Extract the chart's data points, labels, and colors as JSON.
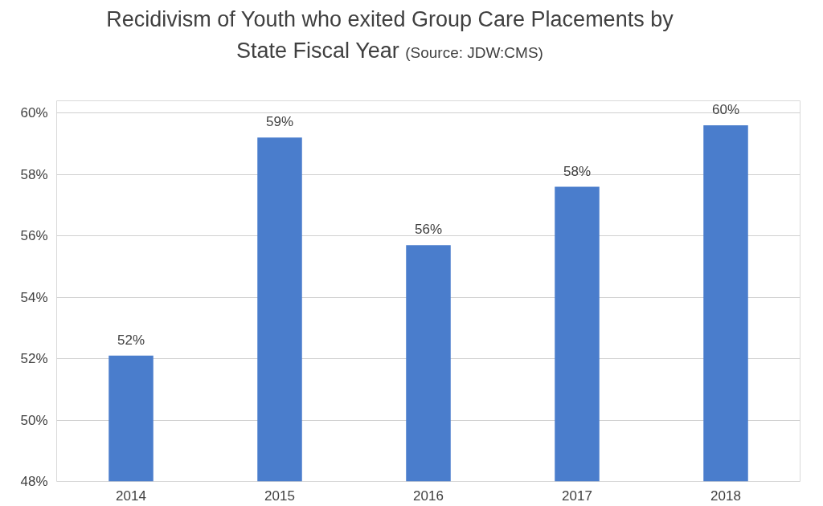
{
  "chart_data": {
    "type": "bar",
    "title": "Recidivism of Youth who exited Group Care Placements by State Fiscal Year",
    "annotations": [
      "(Source: JDW:CMS)"
    ],
    "categories": [
      "2014",
      "2015",
      "2016",
      "2017",
      "2018"
    ],
    "values": [
      52.1,
      59.2,
      55.7,
      57.6,
      59.6
    ],
    "value_labels": [
      "52%",
      "59%",
      "56%",
      "58%",
      "60%"
    ],
    "color": "#4a7dcc",
    "ylim": [
      48,
      60.4
    ],
    "yticks": [
      {
        "value": 48,
        "label": "48%"
      },
      {
        "value": 50,
        "label": "50%"
      },
      {
        "value": 52,
        "label": "52%"
      },
      {
        "value": 54,
        "label": "54%"
      },
      {
        "value": 56,
        "label": "56%"
      },
      {
        "value": 58,
        "label": "58%"
      },
      {
        "value": 60,
        "label": "60%"
      }
    ],
    "grid": "y"
  }
}
